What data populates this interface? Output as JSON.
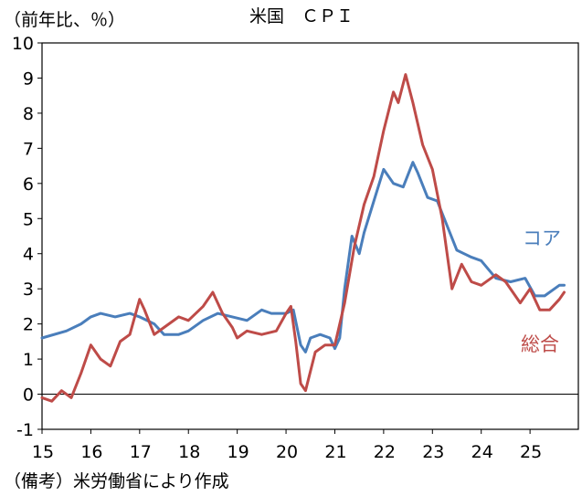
{
  "chart_data": {
    "type": "line",
    "title": "米国　ＣＰＩ",
    "unit_label": "（前年比、％）",
    "source": "（備考）米労働省により作成",
    "xlim": [
      15.0,
      25.99
    ],
    "ylim": [
      -1,
      10
    ],
    "y_ticks": [
      -1,
      0,
      1,
      2,
      3,
      4,
      5,
      6,
      7,
      8,
      9,
      10
    ],
    "x_ticks": [
      {
        "value": 15,
        "label": "15"
      },
      {
        "value": 16,
        "label": "16"
      },
      {
        "value": 17,
        "label": "17"
      },
      {
        "value": 18,
        "label": "18"
      },
      {
        "value": 19,
        "label": "19"
      },
      {
        "value": 20,
        "label": "20"
      },
      {
        "value": 21,
        "label": "21"
      },
      {
        "value": 22,
        "label": "22"
      },
      {
        "value": 23,
        "label": "23"
      },
      {
        "value": 24,
        "label": "24"
      },
      {
        "value": 25,
        "label": "25"
      }
    ],
    "zero_line": true,
    "grid": false,
    "series": [
      {
        "name": "コア",
        "color": "#4a7ebb",
        "x": [
          15.0,
          15.5,
          15.8,
          16.0,
          16.2,
          16.5,
          16.8,
          17.0,
          17.3,
          17.5,
          17.8,
          18.0,
          18.3,
          18.6,
          18.9,
          19.2,
          19.5,
          19.7,
          20.0,
          20.15,
          20.3,
          20.4,
          20.5,
          20.7,
          20.9,
          21.0,
          21.1,
          21.2,
          21.35,
          21.5,
          21.6,
          21.8,
          22.0,
          22.2,
          22.4,
          22.6,
          22.7,
          22.9,
          23.1,
          23.3,
          23.5,
          23.8,
          24.0,
          24.3,
          24.6,
          24.9,
          25.1,
          25.3,
          25.5,
          25.6,
          25.7
        ],
        "values": [
          1.6,
          1.8,
          2.0,
          2.2,
          2.3,
          2.2,
          2.3,
          2.2,
          2.0,
          1.7,
          1.7,
          1.8,
          2.1,
          2.3,
          2.2,
          2.1,
          2.4,
          2.3,
          2.3,
          2.4,
          1.4,
          1.2,
          1.6,
          1.7,
          1.6,
          1.3,
          1.6,
          3.0,
          4.5,
          4.0,
          4.6,
          5.5,
          6.4,
          6.0,
          5.9,
          6.6,
          6.3,
          5.6,
          5.5,
          4.8,
          4.1,
          3.9,
          3.8,
          3.3,
          3.2,
          3.3,
          2.8,
          2.8,
          3.0,
          3.1,
          3.1
        ],
        "end_label": "コア"
      },
      {
        "name": "総合",
        "color": "#be4b48",
        "x": [
          15.0,
          15.2,
          15.4,
          15.6,
          15.8,
          16.0,
          16.2,
          16.4,
          16.6,
          16.8,
          17.0,
          17.1,
          17.3,
          17.5,
          17.8,
          18.0,
          18.3,
          18.5,
          18.7,
          18.9,
          19.0,
          19.2,
          19.5,
          19.8,
          20.0,
          20.1,
          20.2,
          20.3,
          20.4,
          20.6,
          20.8,
          21.0,
          21.2,
          21.4,
          21.6,
          21.8,
          22.0,
          22.2,
          22.3,
          22.45,
          22.6,
          22.8,
          23.0,
          23.2,
          23.4,
          23.6,
          23.8,
          24.0,
          24.3,
          24.5,
          24.8,
          25.0,
          25.2,
          25.4,
          25.6,
          25.7
        ],
        "values": [
          -0.1,
          -0.2,
          0.1,
          -0.1,
          0.6,
          1.4,
          1.0,
          0.8,
          1.5,
          1.7,
          2.7,
          2.4,
          1.7,
          1.9,
          2.2,
          2.1,
          2.5,
          2.9,
          2.3,
          1.9,
          1.6,
          1.8,
          1.7,
          1.8,
          2.3,
          2.5,
          1.5,
          0.3,
          0.1,
          1.2,
          1.4,
          1.4,
          2.6,
          4.2,
          5.4,
          6.2,
          7.5,
          8.6,
          8.3,
          9.1,
          8.3,
          7.1,
          6.4,
          5.0,
          3.0,
          3.7,
          3.2,
          3.1,
          3.4,
          3.2,
          2.6,
          3.0,
          2.4,
          2.4,
          2.7,
          2.9
        ],
        "end_label": "総合"
      }
    ]
  }
}
